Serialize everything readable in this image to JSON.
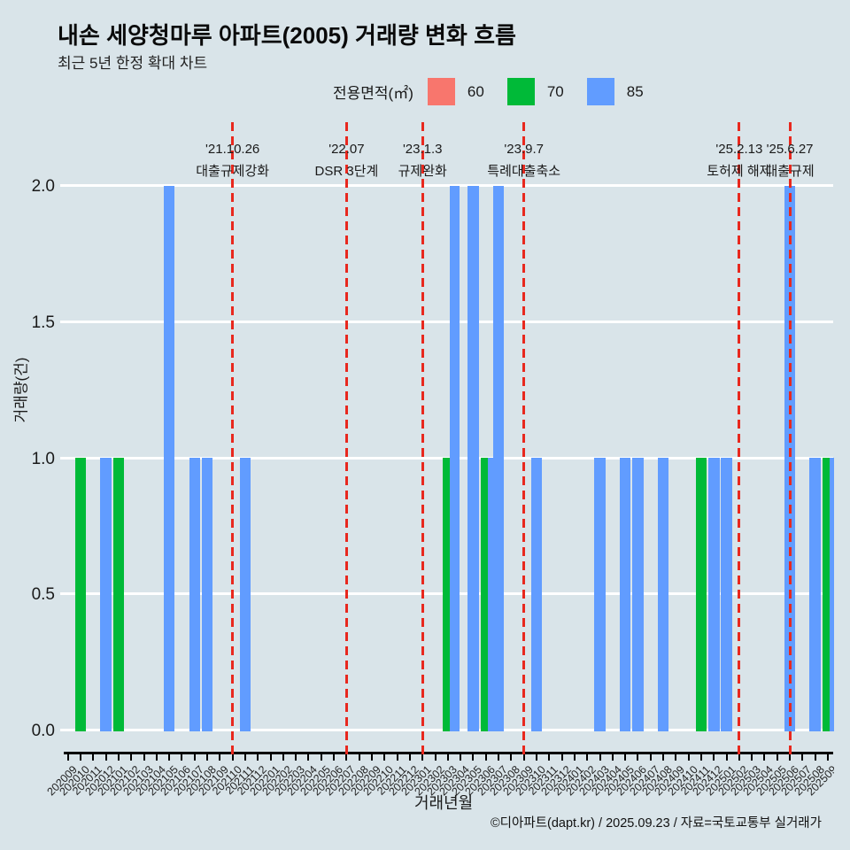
{
  "chart_data": {
    "type": "bar",
    "title": "내손 세양청마루 아파트(2005) 거래량 변화 흐름",
    "subtitle": "최근 5년 한정 확대 차트",
    "xlabel": "거래년월",
    "ylabel": "거래량(건)",
    "ylim": [
      0,
      2
    ],
    "yticks": [
      "0.0",
      "0.5",
      "1.0",
      "1.5",
      "2.0"
    ],
    "grid": "horizontal white lines",
    "legend_position": "top-center",
    "months": [
      "202009",
      "202010",
      "202011",
      "202012",
      "202101",
      "202102",
      "202103",
      "202104",
      "202105",
      "202106",
      "202107",
      "202108",
      "202109",
      "202110",
      "202111",
      "202112",
      "202201",
      "202202",
      "202203",
      "202204",
      "202205",
      "202206",
      "202207",
      "202208",
      "202209",
      "202210",
      "202211",
      "202212",
      "202301",
      "202302",
      "202303",
      "202304",
      "202305",
      "202306",
      "202307",
      "202308",
      "202309",
      "202310",
      "202311",
      "202312",
      "202401",
      "202402",
      "202403",
      "202404",
      "202405",
      "202406",
      "202407",
      "202408",
      "202409",
      "202410",
      "202411",
      "202412",
      "202501",
      "202502",
      "202503",
      "202504",
      "202505",
      "202506",
      "202507",
      "202508",
      "202509"
    ],
    "series": [
      {
        "name": "60",
        "color": "#f8766d",
        "data": {}
      },
      {
        "name": "70",
        "color": "#00ba38",
        "data": {
          "202010": 1,
          "202101": 1,
          "202303": 1,
          "202306": 1,
          "202411": 1,
          "202509": 1
        }
      },
      {
        "name": "85",
        "color": "#619cff",
        "data": {
          "202012": 1,
          "202105": 2,
          "202107": 1,
          "202108": 1,
          "202111": 1,
          "202303": 2,
          "202305": 2,
          "202306": 1,
          "202307": 2,
          "202310": 1,
          "202403": 1,
          "202405": 1,
          "202406": 1,
          "202408": 1,
          "202412": 1,
          "202501": 1,
          "202506": 2,
          "202508": 1,
          "202509": 1
        }
      }
    ],
    "events": [
      {
        "month": "202110",
        "date": "'21.10.26",
        "label": "대출규제강화"
      },
      {
        "month": "202207",
        "date": "'22.07",
        "label": "DSR 3단계"
      },
      {
        "month": "202301",
        "date": "'23.1.3",
        "label": "규제완화"
      },
      {
        "month": "202309",
        "date": "'23.9.7",
        "label": "특례대출축소"
      },
      {
        "month": "202502",
        "date": "'25.2.13",
        "label": "토허제 해제"
      },
      {
        "month": "202506",
        "date": "'25.6.27",
        "label": "대출규제"
      }
    ]
  },
  "legend": {
    "title": "전용면적(㎡)"
  },
  "footer": {
    "credit": "©디아파트(dapt.kr) / 2025.09.23 / 자료=국토교통부 실거래가"
  },
  "colors": {
    "background": "#d9e4e9",
    "grid": "#ffffff",
    "event_line": "#e8281e",
    "axis": "#000000"
  }
}
